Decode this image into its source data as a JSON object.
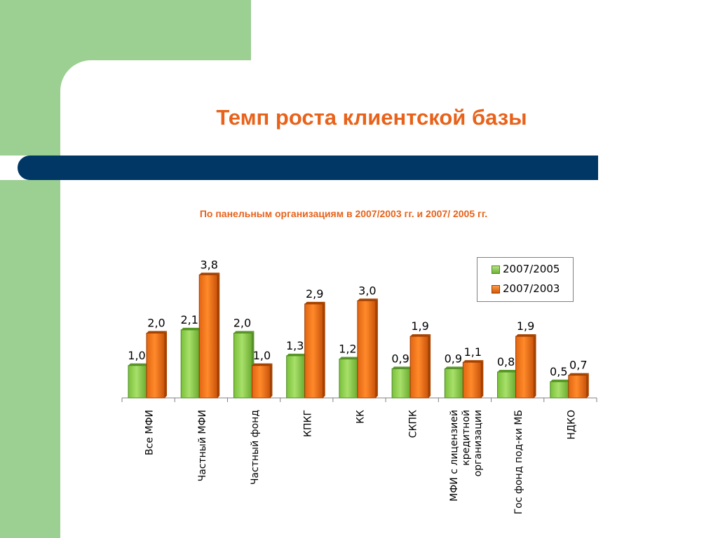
{
  "title": "Темп роста клиентской базы",
  "subtitle": "По панельным организациям в 2007/2003 гг. и 2007/ 2005 гг.",
  "colors": {
    "green": "#8fd14f",
    "orange": "#f07818",
    "accent": "#e8621a",
    "band": "#003764",
    "sidebar": "#9ccf92"
  },
  "chart_data": {
    "type": "bar",
    "categories": [
      [
        "Все МФИ"
      ],
      [
        "Частный МФИ"
      ],
      [
        "Частный фонд"
      ],
      [
        "КПКГ"
      ],
      [
        "КК"
      ],
      [
        "СКПК"
      ],
      [
        "МФИ с лицензией",
        "кредитной",
        "организации"
      ],
      [
        "Гос фонд под-ки МБ"
      ],
      [
        "НДКО"
      ]
    ],
    "series": [
      {
        "name": "2007/2005",
        "values": [
          1.0,
          2.1,
          2.0,
          1.3,
          1.2,
          0.9,
          0.9,
          0.8,
          0.5
        ],
        "labels": [
          "1,0",
          "2,1",
          "2,0",
          "1,3",
          "1,2",
          "0,9",
          "0,9",
          "0,8",
          "0,5"
        ]
      },
      {
        "name": "2007/2003",
        "values": [
          2.0,
          3.8,
          1.0,
          2.9,
          3.0,
          1.9,
          1.1,
          1.9,
          0.7
        ],
        "labels": [
          "2,0",
          "3,8",
          "1,0",
          "2,9",
          "3,0",
          "1,9",
          "1,1",
          "1,9",
          "0,7"
        ]
      }
    ],
    "ylim": [
      0,
      4.0
    ],
    "legend_position": "top-right",
    "grid": false
  }
}
